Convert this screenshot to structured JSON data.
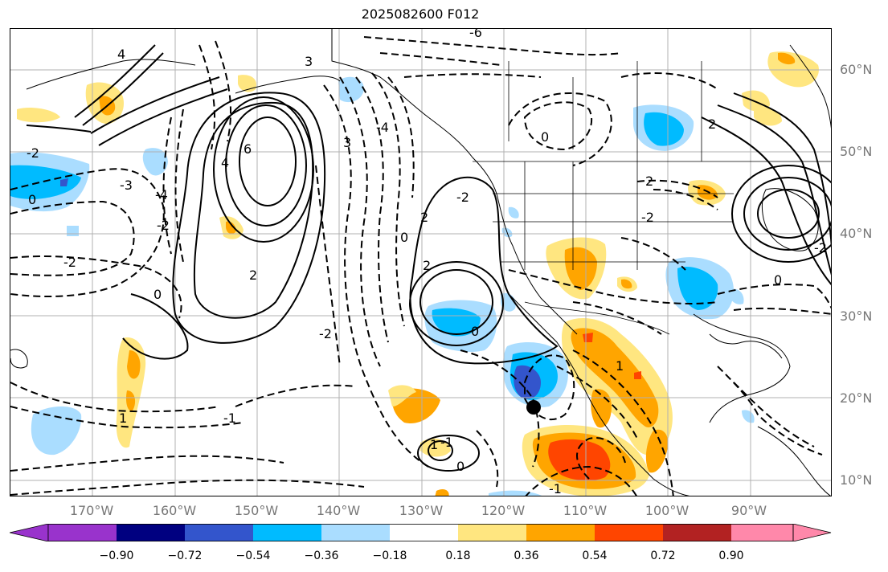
{
  "title": "2025082600 F012",
  "palette": {
    "neg5": "#9933cc",
    "neg4": "#000080",
    "neg3": "#3355cc",
    "neg2": "#00bbff",
    "neg1": "#aaddff",
    "neutral": "#ffffff",
    "pos1": "#ffe680",
    "pos2": "#ffa500",
    "pos3": "#ff4500",
    "pos4": "#b22222",
    "pos5": "#ff88aa"
  },
  "latitude_labels": [
    "60°N",
    "50°N",
    "40°N",
    "30°N",
    "20°N",
    "10°N"
  ],
  "longitude_labels": [
    "170°W",
    "160°W",
    "150°W",
    "140°W",
    "130°W",
    "120°W",
    "110°W",
    "100°W",
    "90°W"
  ],
  "colorbar": {
    "ticks": [
      "−0.90",
      "−0.72",
      "−0.54",
      "−0.36",
      "−0.18",
      "0.18",
      "0.36",
      "0.54",
      "0.72",
      "0.90"
    ],
    "colors": [
      "#9933cc",
      "#000080",
      "#3355cc",
      "#00bbff",
      "#aaddff",
      "#ffffff",
      "#ffe680",
      "#ffa500",
      "#ff4500",
      "#b22222",
      "#ff88aa"
    ]
  },
  "contour_labels": [
    "6",
    "4",
    "2",
    "0",
    "-2",
    "-4",
    "-3",
    "3",
    "-6",
    "4",
    "-4",
    "0",
    "2",
    "-2",
    "0",
    "2",
    "-2",
    "-1",
    "1",
    "-1",
    "1",
    "0",
    "-2",
    "0",
    "-2",
    "2",
    "-2",
    "3",
    "2",
    "-2",
    "0",
    "-1",
    "1",
    "0"
  ],
  "marker": "storm-position-dot"
}
